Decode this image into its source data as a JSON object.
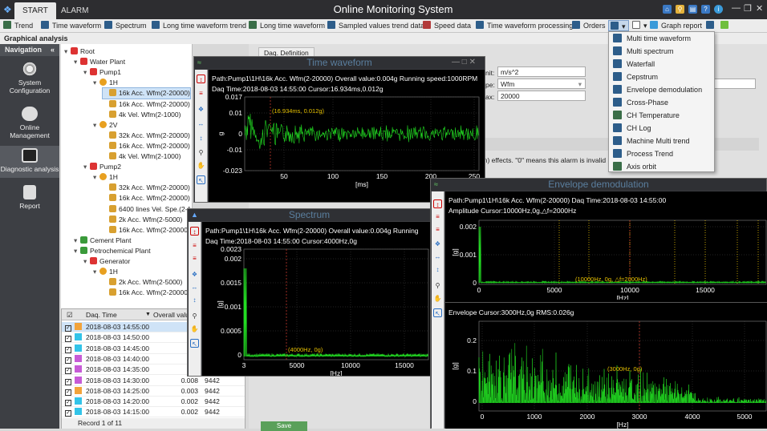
{
  "app": {
    "title": "Online Monitoring System",
    "tabs": [
      "START",
      "ALARM"
    ]
  },
  "toolbar": {
    "items": [
      "Trend",
      "Time waveform",
      "Spectrum",
      "Long time waveform trend",
      "Long time waveform",
      "Sampled values trend data",
      "Speed data",
      "Time waveform processing",
      "Orders",
      "Graph report"
    ]
  },
  "section_title": "Graphical analysis",
  "nav": {
    "title": "Navigation",
    "items": [
      "System Configuration",
      "Online Management",
      "Diagnostic analysis",
      "Report"
    ]
  },
  "tree": {
    "items": [
      {
        "t": "Root",
        "d": 0,
        "icon": "root"
      },
      {
        "t": "Water Plant",
        "d": 1,
        "icon": "plant"
      },
      {
        "t": "Pump1",
        "d": 2,
        "icon": "pump"
      },
      {
        "t": "1H",
        "d": 3,
        "icon": "sensor"
      },
      {
        "t": "16k Acc. Wfm(2-20000)",
        "d": 4,
        "icon": "wave",
        "sel": true
      },
      {
        "t": "16k Acc. Wfm(2-20000)",
        "d": 4,
        "icon": "wave"
      },
      {
        "t": "4k Vel. Wfm(2-1000)",
        "d": 4,
        "icon": "wave"
      },
      {
        "t": "2V",
        "d": 3,
        "icon": "sensor"
      },
      {
        "t": "32k Acc. Wfm(2-20000)",
        "d": 4,
        "icon": "wave"
      },
      {
        "t": "16k Acc. Wfm(2-20000)",
        "d": 4,
        "icon": "wave"
      },
      {
        "t": "4k Vel. Wfm(2-1000)",
        "d": 4,
        "icon": "wave"
      },
      {
        "t": "Pump2",
        "d": 2,
        "icon": "pump"
      },
      {
        "t": "1H",
        "d": 3,
        "icon": "sensor"
      },
      {
        "t": "32k Acc. Wfm(2-20000)",
        "d": 4,
        "icon": "wave"
      },
      {
        "t": "16k Acc. Wfm(2-20000)",
        "d": 4,
        "icon": "wave"
      },
      {
        "t": "6400 lines Vel. Spe.(2-1",
        "d": 4,
        "icon": "wave"
      },
      {
        "t": "2k Acc. Wfm(2-5000)",
        "d": 4,
        "icon": "wave"
      },
      {
        "t": "16k Acc. Wfm(2-20000)",
        "d": 4,
        "icon": "wave"
      },
      {
        "t": "Cement Plant",
        "d": 1,
        "icon": "plant"
      },
      {
        "t": "Petrochemical Plant",
        "d": 1,
        "icon": "plant"
      },
      {
        "t": "Generator",
        "d": 2,
        "icon": "pump"
      },
      {
        "t": "1H",
        "d": 3,
        "icon": "sensor"
      },
      {
        "t": "2k Acc. Wfm(2-5000)",
        "d": 4,
        "icon": "wave"
      },
      {
        "t": "16k Acc. Wfm(2-20000)",
        "d": 4,
        "icon": "wave"
      }
    ]
  },
  "grid": {
    "headers": [
      "Daq. Time",
      "Overall value"
    ],
    "rows": [
      {
        "time": "2018-08-03 14:55:00",
        "val": "0.0",
        "speed": "",
        "c": "#f2a33a",
        "sel": true
      },
      {
        "time": "2018-08-03 14:50:00",
        "val": "0.0",
        "speed": "",
        "c": "#32c3e8"
      },
      {
        "time": "2018-08-03 14:45:00",
        "val": "0.0",
        "speed": "",
        "c": "#32c3e8"
      },
      {
        "time": "2018-08-03 14:40:00",
        "val": "0.0",
        "speed": "",
        "c": "#c65bd6"
      },
      {
        "time": "2018-08-03 14:35:00",
        "val": "0.0",
        "speed": "",
        "c": "#c65bd6"
      },
      {
        "time": "2018-08-03 14:30:00",
        "val": "0.008",
        "speed": "9442",
        "c": "#c65bd6"
      },
      {
        "time": "2018-08-03 14:25:00",
        "val": "0.003",
        "speed": "9442",
        "c": "#f2a33a"
      },
      {
        "time": "2018-08-03 14:20:00",
        "val": "0.002",
        "speed": "9442",
        "c": "#32c3e8"
      },
      {
        "time": "2018-08-03 14:15:00",
        "val": "0.002",
        "speed": "9442",
        "c": "#32c3e8"
      }
    ],
    "footer": "Record 1 of 11"
  },
  "daq_tab": "Daq. Definition",
  "form": {
    "unit_label": "nit:",
    "unit_value": "m/s^2",
    "type_label": "pe:",
    "type_value": "Wfm",
    "max_label": "ax:",
    "max_value": "20000"
  },
  "description": "on) effects. \"0\" means this alarm is invalid",
  "save_label": "Save",
  "menu": {
    "items": [
      "Multi time waveform",
      "Multi spectrum",
      "Waterfall",
      "Cepstrum",
      "Envelope demodulation",
      "Cross-Phase",
      "CH Temperature",
      "CH Log",
      "Machine Multi trend",
      "Process Trend",
      "Axis orbit"
    ]
  },
  "colors": {
    "trace": "#22dd22",
    "cursor": "#c0392b",
    "label": "#e6c000",
    "accent": "#3a78c3"
  },
  "time_wave": {
    "title": "Time waveform",
    "info1": "Path:Pump1\\1H\\16k Acc. Wfm(2-20000)     Overall value:0.004g     Running speed:1000RPM",
    "info2": "Daq Time:2018-08-03 14:55:00     Cursor:16.934ms,0.012g",
    "cursor_label": "(16.934ms, 0.012g)",
    "yticks": [
      "0.017",
      "0.01",
      "0",
      "-0.01",
      "-0.023"
    ],
    "xticks": [
      "50",
      "100",
      "150",
      "200",
      "250"
    ],
    "xlabel": "[ms]",
    "ylabel": "g"
  },
  "spectrum": {
    "title": "Spectrum",
    "info1": "Path:Pump1\\1H\\16k Acc. Wfm(2-20000)     Overall value:0.004g     Running",
    "info2": "Daq Time:2018-08-03 14:55:00     Cursor:4000Hz,0g",
    "cursor_label": "(4000Hz, 0g)",
    "yticks": [
      "0.0023",
      "0.002",
      "0.0015",
      "0.001",
      "0.0005",
      "0"
    ],
    "xticks": [
      "3",
      "5000",
      "10000",
      "15000"
    ],
    "xlabel": "[Hz]",
    "ylabel": "[g]"
  },
  "envelope": {
    "title": "Envelope demodulation",
    "info": "Path:Pump1\\1H\\16k Acc. Wfm(2-20000)     Daq Time:2018-08-03 14:55:00",
    "amp_info": "Amplitude     Cursor:10000Hz,0g,△f=2000Hz",
    "amp_label": "(10000Hz, 0g, △f=2000Hz)",
    "amp_yticks": [
      "0.002",
      "0.001",
      "0"
    ],
    "amp_xticks": [
      "0",
      "5000",
      "10000",
      "15000"
    ],
    "env_info": "Envelope     Cursor:3000Hz,0g     RMS:0.026g",
    "env_label": "(3000Hz, 0g)",
    "env_yticks": [
      "0.2",
      "0.1",
      "0"
    ],
    "env_xticks": [
      "0",
      "1000",
      "2000",
      "3000",
      "4000",
      "5000"
    ],
    "xlabel": "[Hz]",
    "ylabel": "[g]"
  }
}
